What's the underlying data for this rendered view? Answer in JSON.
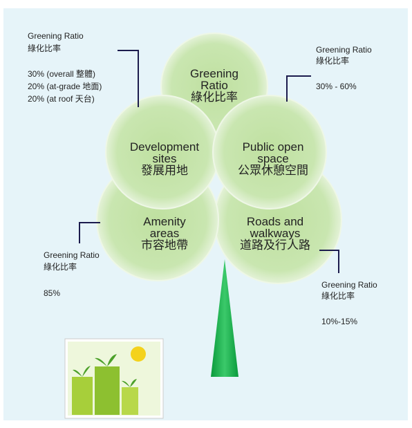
{
  "nodes": [
    {
      "label": [
        "Greening",
        "Ratio",
        "綠化比率"
      ]
    },
    {
      "label": [
        "Development",
        "sites",
        "發展用地"
      ]
    },
    {
      "label": [
        "Public open",
        "space",
        "公眾休憩空間"
      ]
    },
    {
      "label": [
        "Amenity",
        "areas",
        "市容地帶"
      ]
    },
    {
      "label": [
        "Roads and",
        "walkways",
        "道路及行人路"
      ]
    }
  ],
  "annotations": [
    {
      "lines": [
        "Greening Ratio",
        "綠化比率",
        "30% (overall 整體)",
        "20% (at-grade 地面)",
        "20% (at roof 天台)"
      ]
    },
    {
      "lines": [
        "Greening Ratio",
        "綠化比率",
        "30% - 60%"
      ]
    },
    {
      "lines": [
        "Greening Ratio",
        "綠化比率",
        "85%"
      ]
    },
    {
      "lines": [
        "Greening Ratio",
        "綠化比率",
        "10%-15%"
      ]
    }
  ]
}
